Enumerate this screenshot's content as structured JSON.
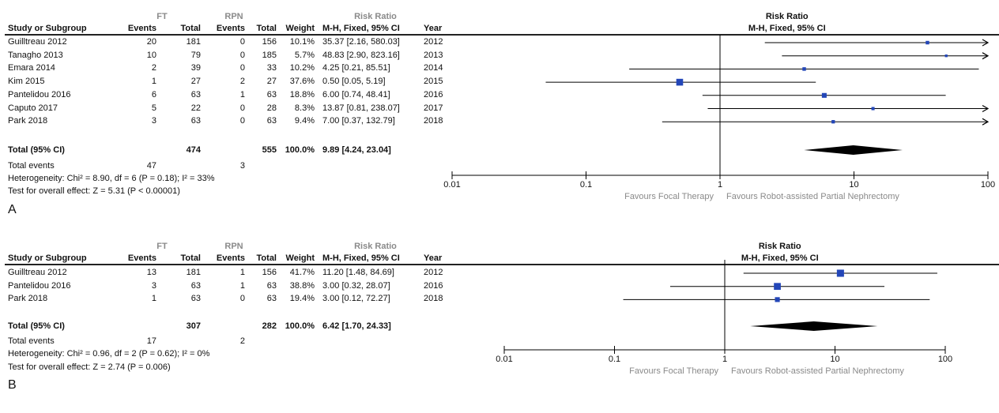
{
  "chart_data": [
    {
      "type": "forest",
      "panel_label": "A",
      "groups": {
        "ft": "FT",
        "rpn": "RPN"
      },
      "headers": {
        "study": "Study or Subgroup",
        "events": "Events",
        "total": "Total",
        "weight": "Weight",
        "rr": "Risk Ratio",
        "rr_method": "M-H, Fixed, 95% CI",
        "year": "Year",
        "plot_title": "Risk Ratio",
        "plot_method": "M-H, Fixed, 95% CI"
      },
      "studies": [
        {
          "name": "Guilltreau 2012",
          "ft_events": "20",
          "ft_total": "181",
          "rpn_events": "0",
          "rpn_total": "156",
          "weight": "10.1%",
          "ci_text": "35.37 [2.16, 580.03]",
          "year": "2012",
          "rr": 35.37,
          "lo": 2.16,
          "hi": 580.03,
          "w": 10.1
        },
        {
          "name": "Tanagho 2013",
          "ft_events": "10",
          "ft_total": "79",
          "rpn_events": "0",
          "rpn_total": "185",
          "weight": "5.7%",
          "ci_text": "48.83 [2.90, 823.16]",
          "year": "2013",
          "rr": 48.83,
          "lo": 2.9,
          "hi": 823.16,
          "w": 5.7
        },
        {
          "name": "Emara 2014",
          "ft_events": "2",
          "ft_total": "39",
          "rpn_events": "0",
          "rpn_total": "33",
          "weight": "10.2%",
          "ci_text": "4.25 [0.21, 85.51]",
          "year": "2014",
          "rr": 4.25,
          "lo": 0.21,
          "hi": 85.51,
          "w": 10.2
        },
        {
          "name": "Kim 2015",
          "ft_events": "1",
          "ft_total": "27",
          "rpn_events": "2",
          "rpn_total": "27",
          "weight": "37.6%",
          "ci_text": "0.50 [0.05, 5.19]",
          "year": "2015",
          "rr": 0.5,
          "lo": 0.05,
          "hi": 5.19,
          "w": 37.6
        },
        {
          "name": "Pantelidou 2016",
          "ft_events": "6",
          "ft_total": "63",
          "rpn_events": "1",
          "rpn_total": "63",
          "weight": "18.8%",
          "ci_text": "6.00 [0.74, 48.41]",
          "year": "2016",
          "rr": 6.0,
          "lo": 0.74,
          "hi": 48.41,
          "w": 18.8
        },
        {
          "name": "Caputo 2017",
          "ft_events": "5",
          "ft_total": "22",
          "rpn_events": "0",
          "rpn_total": "28",
          "weight": "8.3%",
          "ci_text": "13.87 [0.81, 238.07]",
          "year": "2017",
          "rr": 13.87,
          "lo": 0.81,
          "hi": 238.07,
          "w": 8.3
        },
        {
          "name": "Park 2018",
          "ft_events": "3",
          "ft_total": "63",
          "rpn_events": "0",
          "rpn_total": "63",
          "weight": "9.4%",
          "ci_text": "7.00 [0.37, 132.79]",
          "year": "2018",
          "rr": 7.0,
          "lo": 0.37,
          "hi": 132.79,
          "w": 9.4
        }
      ],
      "total": {
        "label": "Total (95% CI)",
        "ft_total": "474",
        "rpn_total": "555",
        "weight": "100.0%",
        "ci_text": "9.89 [4.24, 23.04]",
        "rr": 9.89,
        "lo": 4.24,
        "hi": 23.04
      },
      "total_events": {
        "label": "Total events",
        "ft": "47",
        "rpn": "3"
      },
      "heterogeneity": "Heterogeneity: Chi² = 8.90, df = 6 (P = 0.18); I² = 33%",
      "overall_effect": "Test for overall effect: Z = 5.31 (P < 0.00001)",
      "axis": {
        "scale": "log",
        "ticks": [
          0.01,
          0.1,
          1,
          10,
          100
        ],
        "tick_labels": [
          "0.01",
          "0.1",
          "1",
          "10",
          "100"
        ],
        "favours_left": "Favours Focal Therapy",
        "favours_right": "Favours Robot-assisted Partial Nephrectomy"
      }
    },
    {
      "type": "forest",
      "panel_label": "B",
      "groups": {
        "ft": "FT",
        "rpn": "RPN"
      },
      "headers": {
        "study": "Study or Subgroup",
        "events": "Events",
        "total": "Total",
        "weight": "Weight",
        "rr": "Risk Ratio",
        "rr_method": "M-H, Fixed, 95% CI",
        "year": "Year",
        "plot_title": "Risk Ratio",
        "plot_method": "M-H, Fixed, 95% CI"
      },
      "studies": [
        {
          "name": "Guilltreau 2012",
          "ft_events": "13",
          "ft_total": "181",
          "rpn_events": "1",
          "rpn_total": "156",
          "weight": "41.7%",
          "ci_text": "11.20 [1.48, 84.69]",
          "year": "2012",
          "rr": 11.2,
          "lo": 1.48,
          "hi": 84.69,
          "w": 41.7
        },
        {
          "name": "Pantelidou 2016",
          "ft_events": "3",
          "ft_total": "63",
          "rpn_events": "1",
          "rpn_total": "63",
          "weight": "38.8%",
          "ci_text": "3.00 [0.32, 28.07]",
          "year": "2016",
          "rr": 3.0,
          "lo": 0.32,
          "hi": 28.07,
          "w": 38.8
        },
        {
          "name": "Park 2018",
          "ft_events": "1",
          "ft_total": "63",
          "rpn_events": "0",
          "rpn_total": "63",
          "weight": "19.4%",
          "ci_text": "3.00 [0.12, 72.27]",
          "year": "2018",
          "rr": 3.0,
          "lo": 0.12,
          "hi": 72.27,
          "w": 19.4
        }
      ],
      "total": {
        "label": "Total (95% CI)",
        "ft_total": "307",
        "rpn_total": "282",
        "weight": "100.0%",
        "ci_text": "6.42 [1.70, 24.33]",
        "rr": 6.42,
        "lo": 1.7,
        "hi": 24.33
      },
      "total_events": {
        "label": "Total events",
        "ft": "17",
        "rpn": "2"
      },
      "heterogeneity": "Heterogeneity: Chi² = 0.96, df = 2 (P = 0.62); I² = 0%",
      "overall_effect": "Test for overall effect: Z = 2.74 (P = 0.006)",
      "axis": {
        "scale": "log",
        "ticks": [
          0.01,
          0.1,
          1,
          10,
          100
        ],
        "tick_labels": [
          "0.01",
          "0.1",
          "1",
          "10",
          "100"
        ],
        "favours_left": "Favours Focal Therapy",
        "favours_right": "Favours Robot-assisted Partial Nephrectomy"
      }
    }
  ],
  "colors": {
    "marker": "#2346b8",
    "diamond": "#000000",
    "line": "#000000",
    "muted": "#8a8a8a"
  }
}
